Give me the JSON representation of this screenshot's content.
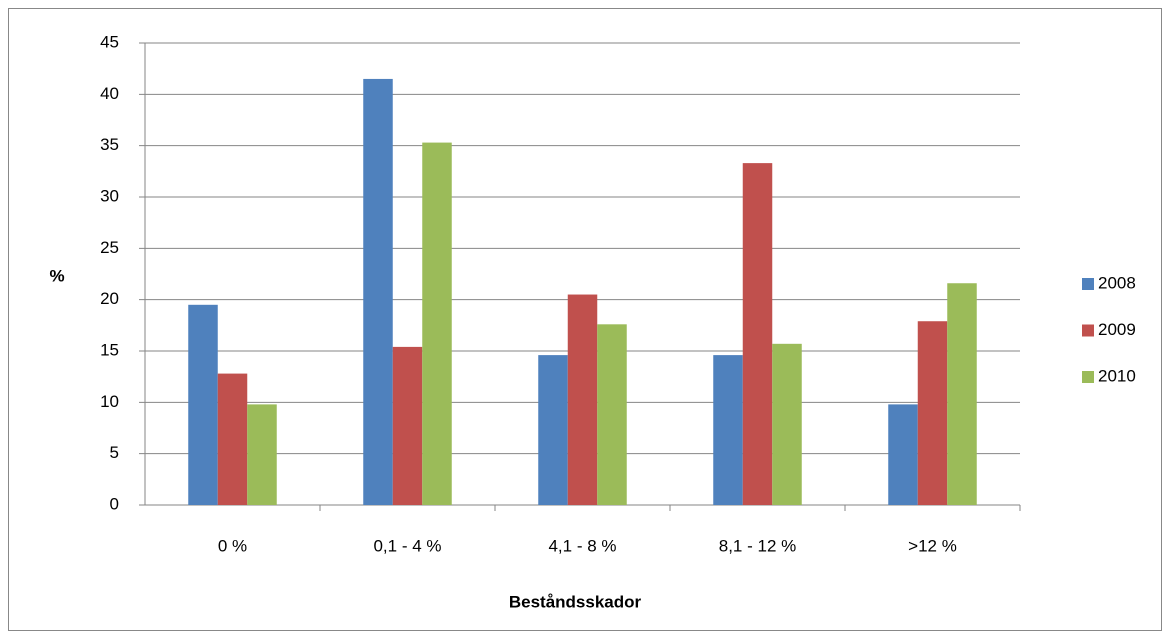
{
  "chart_data": {
    "type": "bar",
    "x_label": "Beståndsskador",
    "y_label": "%",
    "categories": [
      "0 %",
      "0,1 - 4 %",
      "4,1 - 8 %",
      "8,1 - 12 %",
      ">12 %"
    ],
    "series": [
      {
        "name": "2008",
        "color": "#4f81bd",
        "values": [
          19.5,
          41.5,
          14.6,
          14.6,
          9.8
        ]
      },
      {
        "name": "2009",
        "color": "#c0504d",
        "values": [
          12.8,
          15.4,
          20.5,
          33.3,
          17.9
        ]
      },
      {
        "name": "2010",
        "color": "#9bbb59",
        "values": [
          9.8,
          35.3,
          17.6,
          15.7,
          21.6
        ]
      }
    ],
    "ylim": [
      0,
      45
    ],
    "yticks": [
      0,
      5,
      10,
      15,
      20,
      25,
      30,
      35,
      40,
      45
    ],
    "grid": true,
    "legend": "right"
  }
}
